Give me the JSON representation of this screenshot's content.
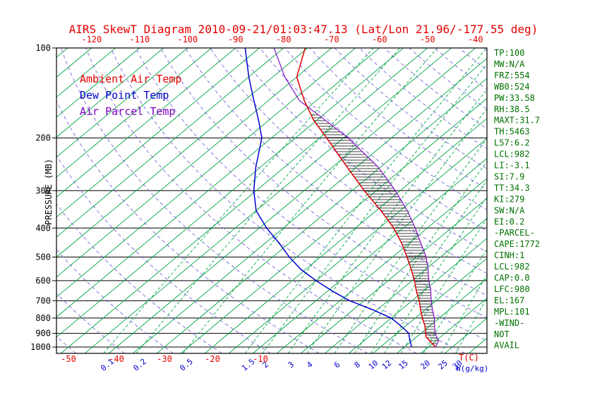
{
  "title": "AIRS SkewT Diagram 2010-09-21/01:03:47.13 (Lat/Lon 21.96/-177.55 deg)",
  "legend": {
    "ambient": "Ambient Air Temp",
    "dew": "Dew Point Temp",
    "parcel": "Air Parcel Temp"
  },
  "axes": {
    "y_label": "PRESSURE (MB)",
    "pressure_ticks": [
      100,
      200,
      300,
      400,
      500,
      600,
      700,
      800,
      900,
      1000
    ],
    "top_temp_ticks": [
      -120,
      -110,
      -100,
      -90,
      -80,
      -70,
      -60,
      -50,
      -40
    ],
    "bottom_temp_ticks": [
      -50,
      -40,
      -30,
      -20,
      -10
    ],
    "mixing_ratio_ticks": [
      0.1,
      0.2,
      0.5,
      1.5,
      2,
      3,
      4,
      6,
      8,
      10,
      12,
      15,
      20,
      25,
      30
    ],
    "x_label_temp": "T(C)",
    "x_label_mixing": "W(g/kg)"
  },
  "right_panel": {
    "lines": [
      "TP:100",
      "MW:N/A",
      "FRZ:554",
      "WB0:524",
      "PW:33.58",
      "RH:38.5",
      "MAXT:31.7",
      "TH:5463",
      "L57:6.2",
      "LCL:982",
      "LI:-3.1",
      "SI:7.9",
      "TT:34.3",
      "KI:279",
      "SW:N/A",
      "EI:0.2",
      "-PARCEL-",
      "CAPE:1772",
      "CINH:1",
      "LCL:982",
      "CAP:0.0",
      "LFC:980",
      "EL:167",
      "MPL:101",
      "-WIND-",
      "NOT",
      "AVAIL"
    ]
  },
  "colors": {
    "title_red": "#e60000",
    "isotherm_green": "#00a642",
    "dewpoint_blue": "#0000cd",
    "adiabat_purple": "#7766dd",
    "parcel_purple": "#7d00c4",
    "panel_green": "#007000",
    "axis_black": "#000000",
    "hatch_black": "#000000"
  },
  "chart_data": {
    "type": "line",
    "title": "AIRS SkewT Diagram 2010-09-21/01:03:47.13 (Lat/Lon 21.96/-177.55 deg)",
    "ylabel": "PRESSURE (MB)",
    "xlabel": "T(C)",
    "y_scale": "log",
    "ylim_mb": [
      100,
      1050
    ],
    "legend_position": "top-left",
    "isotherm_step_c": 5,
    "mixing_ratio_lines_g_kg": [
      0.1,
      0.2,
      0.5,
      1.5,
      2,
      3,
      4,
      6,
      8,
      10,
      12,
      15,
      20,
      25,
      30
    ],
    "dry_adiabats_theta_c": {
      "min": -60,
      "max": 180,
      "step": 10
    },
    "cape_hatch_mb": {
      "from": 980,
      "to": 167
    },
    "sounding": {
      "pressure_mb": [
        1000,
        975,
        950,
        925,
        900,
        850,
        800,
        750,
        700,
        650,
        600,
        550,
        500,
        450,
        400,
        350,
        300,
        250,
        200,
        175,
        150,
        125,
        100
      ],
      "ambient_temp_c": [
        26.5,
        25.0,
        23.5,
        22.0,
        21.0,
        19.0,
        16.5,
        14.0,
        11.5,
        8.5,
        5.5,
        2.0,
        -2.0,
        -6.5,
        -12.0,
        -19.0,
        -27.5,
        -37.0,
        -48.5,
        -55.5,
        -62.5,
        -70.0,
        -75.5
      ],
      "dew_point_c": [
        21.5,
        20.5,
        19.5,
        18.5,
        17.5,
        14.0,
        10.0,
        4.0,
        -3.0,
        -9.0,
        -15.0,
        -21.0,
        -26.5,
        -32.0,
        -38.5,
        -45.0,
        -50.5,
        -56.0,
        -62.0,
        -67.0,
        -73.0,
        -80.0,
        -88.0
      ],
      "parcel_temp_c": [
        26.5,
        26.0,
        25.5,
        24.2,
        23.0,
        21.0,
        19.0,
        16.5,
        14.0,
        11.5,
        8.5,
        5.5,
        2.0,
        -2.5,
        -7.5,
        -13.5,
        -21.0,
        -30.5,
        -44.0,
        -53.0,
        -63.5,
        -72.5,
        -82.0
      ]
    }
  }
}
